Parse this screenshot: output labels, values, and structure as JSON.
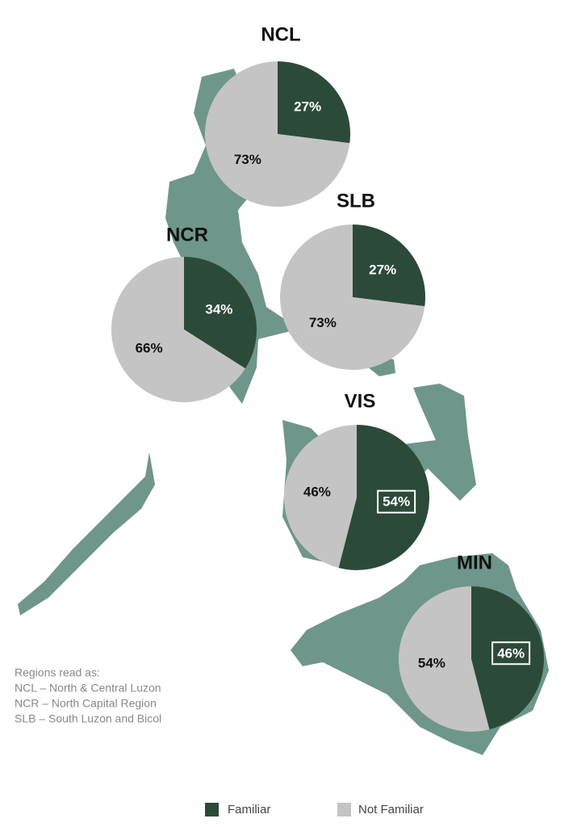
{
  "chart_data": {
    "type": "pie",
    "categories": [
      "Familiar",
      "Not Familiar"
    ],
    "colors": [
      "#2c4a3a",
      "#c4c4c4"
    ],
    "pies": [
      {
        "title": "NCL",
        "values": [
          27,
          73
        ],
        "value_labels": [
          "27%",
          "73%"
        ]
      },
      {
        "title": "SLB",
        "values": [
          27,
          73
        ],
        "value_labels": [
          "27%",
          "73%"
        ]
      },
      {
        "title": "NCR",
        "values": [
          34,
          66
        ],
        "value_labels": [
          "34%",
          "66%"
        ]
      },
      {
        "title": "VIS",
        "values": [
          54,
          46
        ],
        "value_labels": [
          "54%",
          "46%"
        ],
        "boxed": [
          0
        ]
      },
      {
        "title": "MIN",
        "values": [
          46,
          54
        ],
        "value_labels": [
          "46%",
          "54%"
        ],
        "boxed": [
          0
        ]
      }
    ],
    "note": [
      "Regions read as:",
      "NCL – North & Central Luzon",
      "NCR – North Capital Region",
      "SLB – South Luzon and Bicol"
    ]
  }
}
